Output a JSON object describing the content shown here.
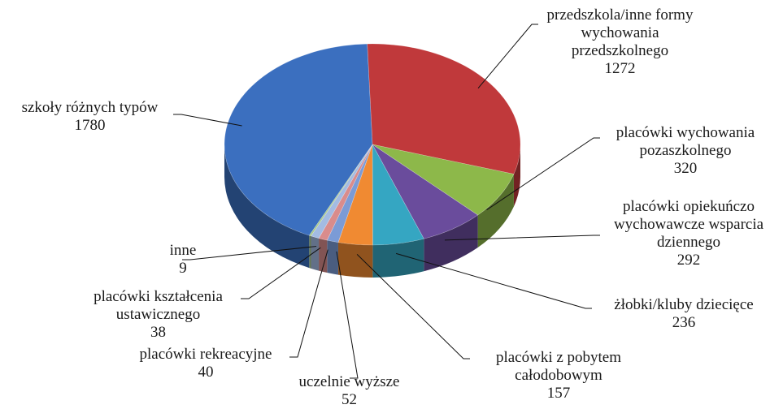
{
  "chart_data": {
    "type": "pie3d",
    "categories": [
      "szkoły różnych typów",
      "przedszkola/inne formy wychowania przedszkolnego",
      "placówki wychowania pozaszkolnego",
      "placówki opiekuńczo wychowawcze wsparcia dziennego",
      "żłobki/kluby dziecięce",
      "placówki z pobytem całodobowym",
      "uczelnie wyższe",
      "placówki rekreacyjne",
      "placówki kształcenia ustawicznego",
      "inne"
    ],
    "values": [
      1780,
      1272,
      320,
      292,
      236,
      157,
      52,
      40,
      38,
      9
    ],
    "colors": [
      "#3b6fbf",
      "#c0393b",
      "#8db84a",
      "#6a4c9c",
      "#35a6c2",
      "#f08a32",
      "#7b9bd6",
      "#d98c8c",
      "#a3bbe3",
      "#a9c98a"
    ]
  }
}
